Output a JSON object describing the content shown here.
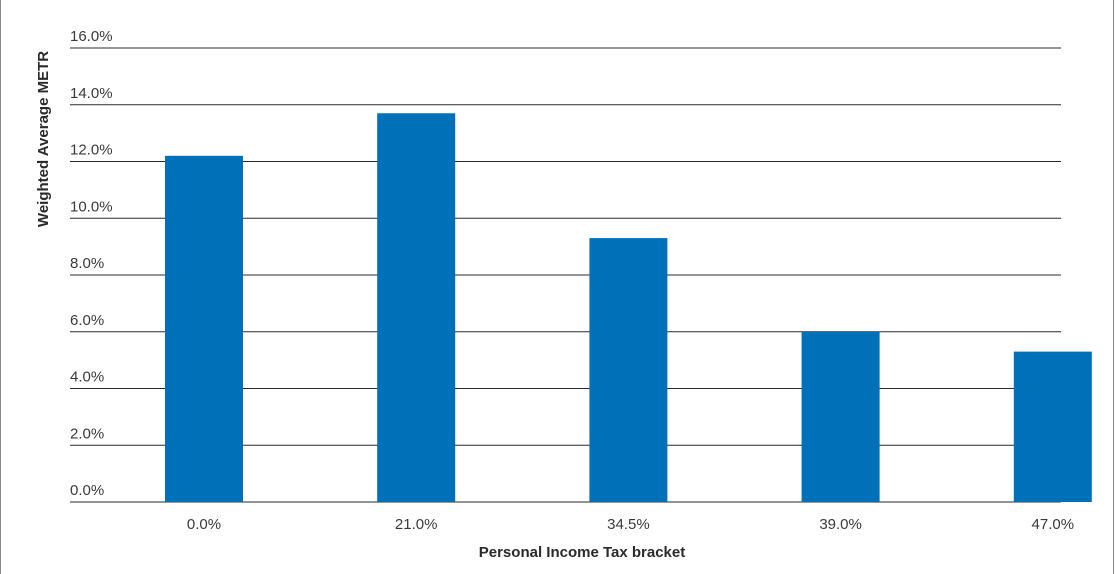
{
  "chart_data": {
    "type": "bar",
    "categories": [
      "0.0%",
      "21.0%",
      "34.5%",
      "39.0%",
      "47.0%"
    ],
    "values": [
      12.2,
      13.7,
      9.3,
      6.0,
      5.3
    ],
    "xlabel": "Personal Income Tax bracket",
    "ylabel": "Weighted Average METR",
    "ylim": [
      0,
      16
    ],
    "yticks": [
      "0.0%",
      "2.0%",
      "4.0%",
      "6.0%",
      "8.0%",
      "10.0%",
      "12.0%",
      "14.0%",
      "16.0%"
    ],
    "ytick_values": [
      0,
      2,
      4,
      6,
      8,
      10,
      12,
      14,
      16
    ],
    "grid": true,
    "legend": "none",
    "bar_color": "#0070b9"
  }
}
